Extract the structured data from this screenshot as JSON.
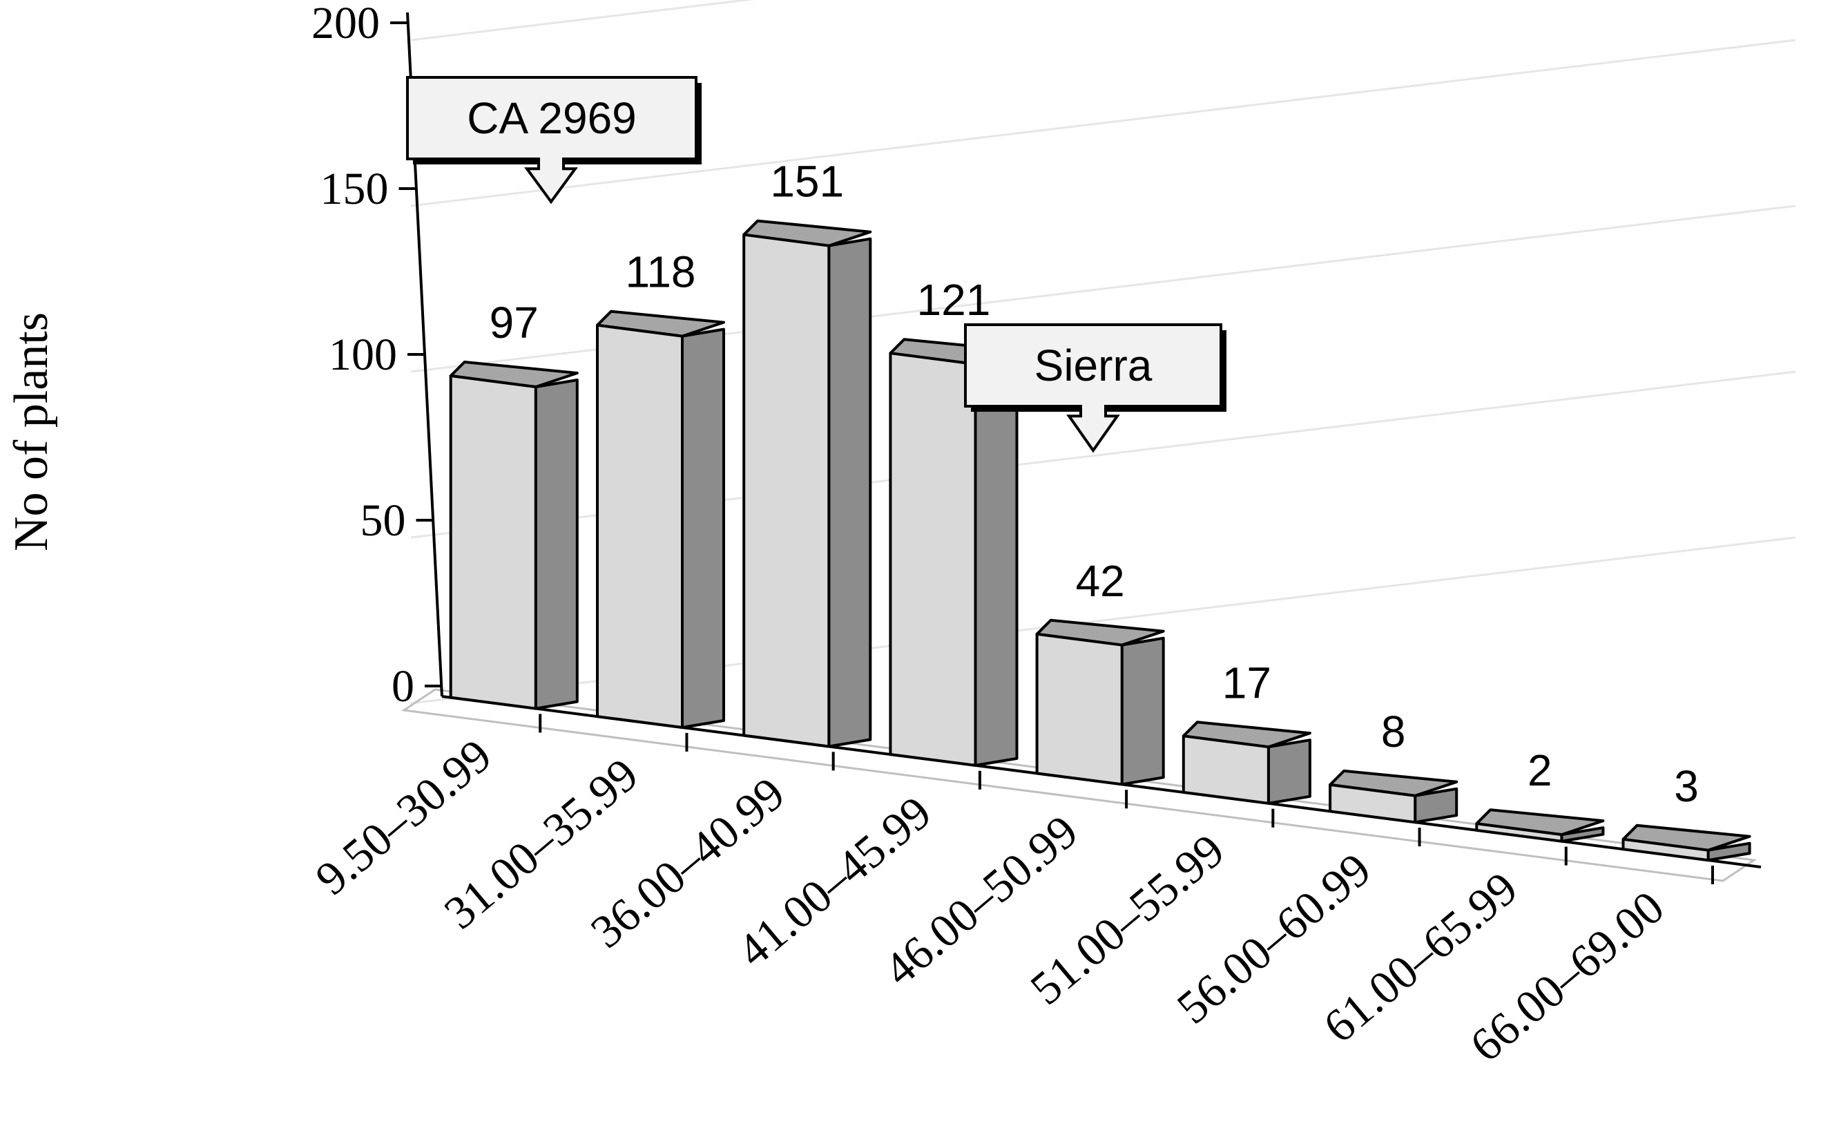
{
  "chart_data": {
    "type": "bar",
    "style": "3d-column",
    "title": "",
    "xlabel": "",
    "ylabel": "No of plants",
    "ylim": [
      0,
      200
    ],
    "yticks": [
      0,
      50,
      100,
      150,
      200
    ],
    "grid": true,
    "categories": [
      "9.50–30.99",
      "31.00–35.99",
      "36.00–40.99",
      "41.00–45.99",
      "46.00–50.99",
      "51.00–55.99",
      "56.00–60.99",
      "61.00–65.99",
      "66.00–69.00"
    ],
    "series": [
      {
        "name": "No of plants",
        "values": [
          97,
          118,
          151,
          121,
          42,
          17,
          8,
          2,
          3
        ]
      }
    ],
    "data_labels": [
      "97",
      "118",
      "151",
      "121",
      "42",
      "17",
      "8",
      "2",
      "3"
    ],
    "annotations": [
      {
        "text": "CA 2969",
        "points_to_category": "9.50–30.99"
      },
      {
        "text": "Sierra",
        "points_to_category": "46.00–50.99"
      }
    ],
    "colors": {
      "bar_front": "#d9d9d9",
      "bar_top": "#a6a6a6",
      "bar_side": "#8c8c8c",
      "outline": "#000000",
      "grid": "#e6e6e6",
      "axis": "#000000",
      "callout_fill": "#f2f2f2"
    }
  }
}
